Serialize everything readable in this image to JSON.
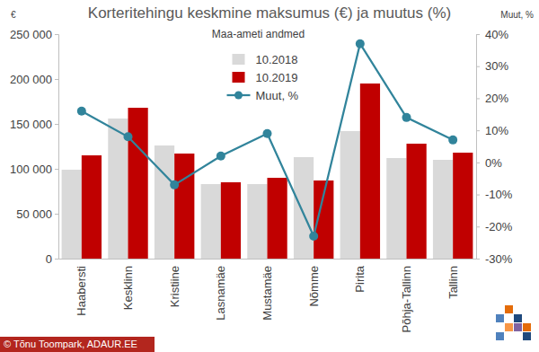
{
  "chart_data": {
    "type": "bar",
    "title": "Korteritehingu keskmine maksumus (€) ja muutus (%)",
    "subtitle": "Maa-ameti andmed",
    "y_label": "€",
    "y2_label": "Muut, %",
    "source": "© Tõnu Toompark, ADAUR.EE",
    "categories": [
      "Haabersti",
      "Kesklinn",
      "Kristiine",
      "Lasnamäe",
      "Mustamäe",
      "Nõmme",
      "Pirita",
      "Põhja-Tallinn",
      "Tallinn"
    ],
    "series": [
      {
        "name": "10.2018",
        "type": "bar",
        "color": "#d9d9d9",
        "values": [
          99000,
          156000,
          126000,
          83000,
          83000,
          113000,
          142000,
          112000,
          110000
        ]
      },
      {
        "name": "10.2019",
        "type": "bar",
        "color": "#c00000",
        "values": [
          115000,
          168000,
          117000,
          85000,
          90000,
          87000,
          195000,
          128000,
          118000
        ]
      },
      {
        "name": "Muut, %",
        "type": "line",
        "axis": "y2",
        "color": "#31849b",
        "marker": "circle",
        "values": [
          16,
          8,
          -7,
          2,
          9,
          -23,
          37,
          14,
          7
        ]
      }
    ],
    "ylim": [
      0,
      250000
    ],
    "yticks": [
      0,
      {
        "value": 50000,
        "label": "50 000"
      },
      {
        "value": 100000,
        "label": "100 000"
      },
      {
        "value": 150000,
        "label": "150 000"
      },
      {
        "value": 200000,
        "label": "200 000"
      },
      {
        "value": 250000,
        "label": "250 000"
      }
    ],
    "y2lim": [
      -30,
      40
    ],
    "y2ticks": [
      {
        "value": -30,
        "label": "-30%"
      },
      {
        "value": -20,
        "label": "-20%"
      },
      {
        "value": -10,
        "label": "-10%"
      },
      {
        "value": 0,
        "label": "0%"
      },
      {
        "value": 10,
        "label": "10%"
      },
      {
        "value": 20,
        "label": "20%"
      },
      {
        "value": 30,
        "label": "30%"
      },
      {
        "value": 40,
        "label": "40%"
      }
    ],
    "grid": false,
    "legend": "top"
  }
}
